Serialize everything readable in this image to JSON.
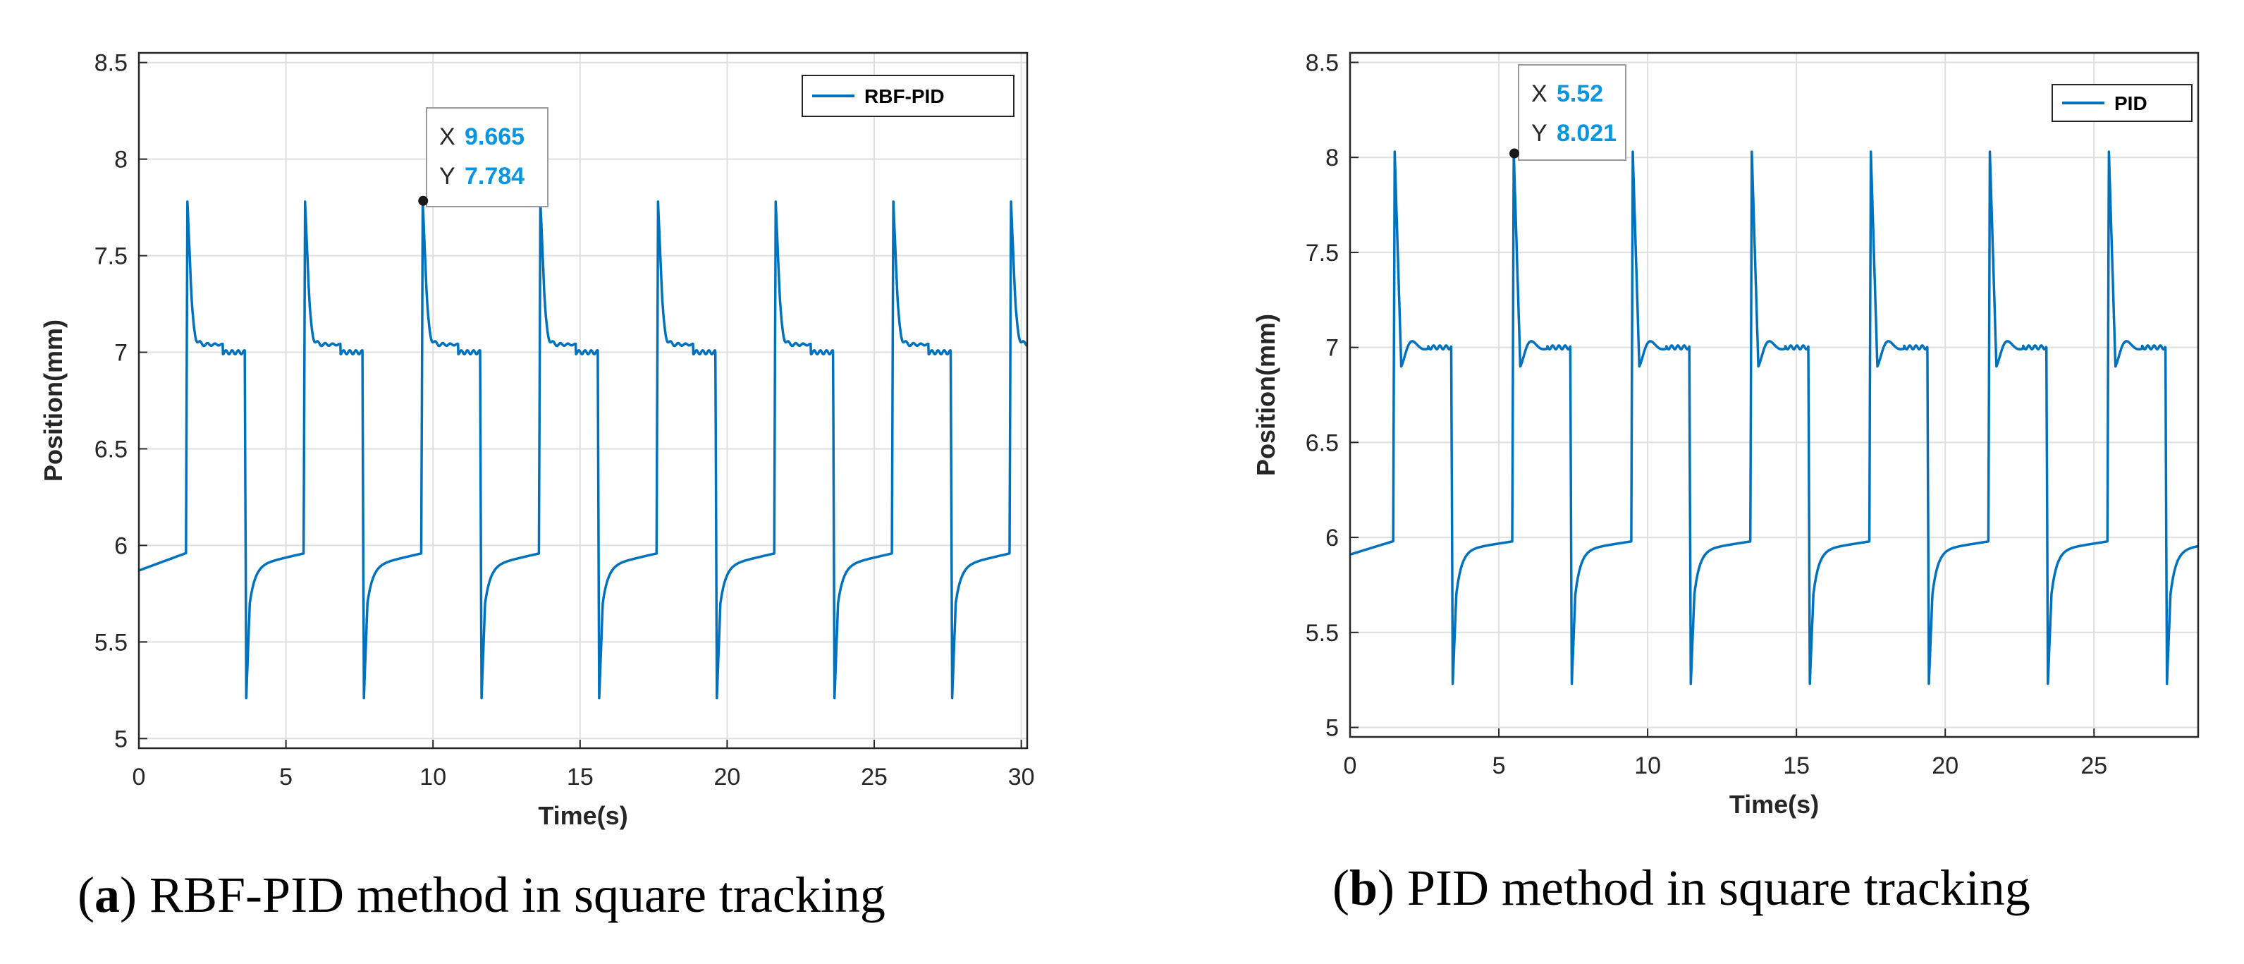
{
  "line_color": "#0072bd",
  "datatip_value_color": "#0a95e0",
  "chart_data": [
    {
      "type": "line",
      "panel_letter": "a",
      "caption": "RBF-PID method in square tracking",
      "xlabel": "Time(s)",
      "ylabel": "Position(mm)",
      "xlim": [
        0,
        30.2
      ],
      "ylim": [
        4.95,
        8.55
      ],
      "xticks": [
        0,
        5,
        10,
        15,
        20,
        25,
        30
      ],
      "yticks": [
        5,
        5.5,
        6,
        6.5,
        7,
        7.5,
        8,
        8.5
      ],
      "grid": true,
      "legend": {
        "label": "RBF-PID",
        "placement": "top-right"
      },
      "datatip": {
        "x": 9.665,
        "y": 7.784,
        "x_label": "X",
        "y_label": "Y",
        "x_text": "9.665",
        "y_text": "7.784"
      },
      "series": [
        {
          "name": "RBF-PID",
          "period": 4,
          "first_rise": 1.6,
          "rise_duration": 0.05,
          "high_duration": 2.0,
          "high_level": 7.0,
          "low_level_start": 5.87,
          "low_level_end": 5.96,
          "overshoot_peak": 7.78,
          "undershoot_trough": 5.21,
          "settle_level_high": 7.04,
          "x_start": 0,
          "x_end": 30.2
        }
      ]
    },
    {
      "type": "line",
      "panel_letter": "b",
      "caption": "PID method in square tracking",
      "xlabel": "Time(s)",
      "ylabel": "Position(mm)",
      "xlim": [
        0,
        28.5
      ],
      "ylim": [
        4.95,
        8.55
      ],
      "xticks": [
        0,
        5,
        10,
        15,
        20,
        25
      ],
      "yticks": [
        5,
        5.5,
        6,
        6.5,
        7,
        7.5,
        8,
        8.5
      ],
      "grid": true,
      "legend": {
        "label": "PID",
        "placement": "top-right"
      },
      "datatip": {
        "x": 5.52,
        "y": 8.021,
        "x_label": "X",
        "y_label": "Y",
        "x_text": "5.52",
        "y_text": "8.021"
      },
      "series": [
        {
          "name": "PID",
          "period": 4,
          "first_rise": 1.45,
          "rise_duration": 0.05,
          "high_duration": 1.95,
          "high_level": 7.0,
          "low_level_start": 5.91,
          "low_level_end": 5.98,
          "overshoot_peak": 8.03,
          "undershoot_trough": 5.23,
          "dip_after_peak": 6.9,
          "ripple_peak": 7.07,
          "x_start": 0,
          "x_end": 28.5
        }
      ]
    }
  ]
}
